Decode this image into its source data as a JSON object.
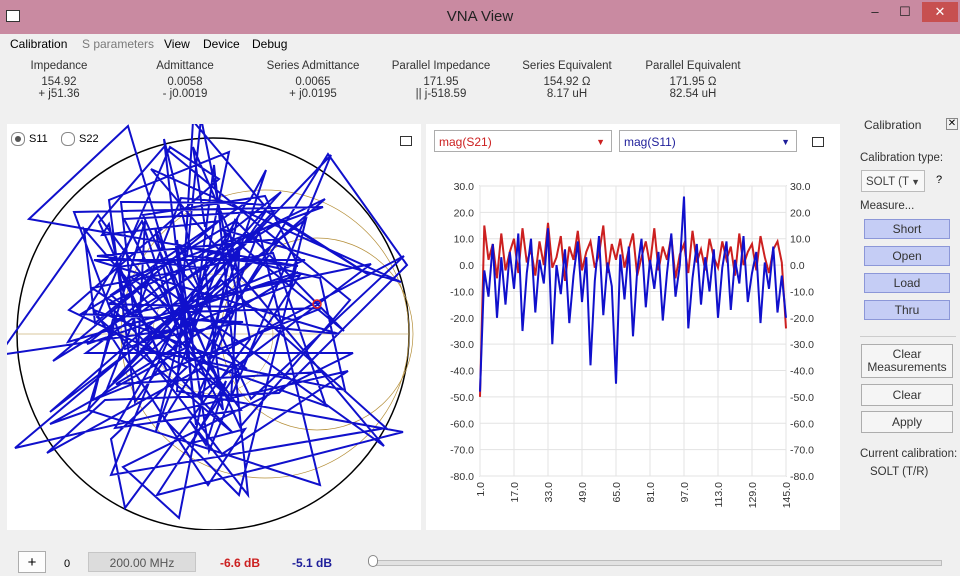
{
  "window": {
    "title": "VNA View",
    "min_glyph": "–",
    "max_glyph": "☐",
    "close_glyph": "✕"
  },
  "menu": [
    "Calibration",
    "S parameters",
    "View",
    "Device",
    "Debug"
  ],
  "stats": [
    {
      "label": "Impedance",
      "v1": "154.92",
      "v2": "+ j51.36"
    },
    {
      "label": "Admittance",
      "v1": "0.0058",
      "v2": "- j0.0019"
    },
    {
      "label": "Series Admittance",
      "v1": "0.0065",
      "v2": "+ j0.0195"
    },
    {
      "label": "Parallel Impedance",
      "v1": "171.95",
      "v2": "|| j-518.59"
    },
    {
      "label": "Series Equivalent",
      "v1": "154.92 Ω",
      "v2": "8.17 uH"
    },
    {
      "label": "Parallel Equivalent",
      "v1": "171.95 Ω",
      "v2": "82.54 uH"
    }
  ],
  "smith": {
    "radio1": "S11",
    "radio2": "S22",
    "trace_color": "#1010cc"
  },
  "plot": {
    "combo1": "mag(S21)",
    "combo2": "mag(S11)",
    "color1": "#cc2020",
    "color2": "#1010cc"
  },
  "chart_data": {
    "type": "line",
    "xlim": [
      1,
      145
    ],
    "ylim": [
      -80,
      30
    ],
    "x_ticks": [
      "1.0",
      "17.0",
      "33.0",
      "49.0",
      "65.0",
      "81.0",
      "97.0",
      "113.0",
      "129.0",
      "145.0"
    ],
    "y_ticks": [
      "30.0",
      "20.0",
      "10.0",
      "0.0",
      "-10.0",
      "-20.0",
      "-30.0",
      "-40.0",
      "-50.0",
      "-60.0",
      "-70.0",
      "-80.0"
    ],
    "grid": true,
    "series": [
      {
        "name": "mag(S21)",
        "color": "#cc2020",
        "x": [
          1,
          3,
          5,
          7,
          9,
          11,
          13,
          15,
          17,
          19,
          21,
          23,
          25,
          27,
          29,
          31,
          33,
          35,
          37,
          39,
          41,
          43,
          45,
          47,
          49,
          51,
          53,
          55,
          57,
          59,
          61,
          63,
          65,
          67,
          69,
          71,
          73,
          75,
          77,
          79,
          81,
          83,
          85,
          87,
          89,
          91,
          93,
          95,
          97,
          99,
          101,
          103,
          105,
          107,
          109,
          111,
          113,
          115,
          117,
          119,
          121,
          123,
          125,
          127,
          129,
          131,
          133,
          135,
          137,
          139,
          141,
          143,
          145
        ],
        "values": [
          -50,
          15,
          2,
          8,
          -5,
          12,
          -2,
          5,
          10,
          -3,
          14,
          1,
          6,
          -4,
          9,
          0,
          16,
          -1,
          3,
          11,
          -6,
          7,
          2,
          13,
          -2,
          5,
          9,
          -1,
          4,
          15,
          -3,
          8,
          2,
          10,
          -1,
          6,
          12,
          -4,
          3,
          9,
          0,
          14,
          -2,
          7,
          2,
          11,
          -5,
          4,
          8,
          -3,
          13,
          1,
          6,
          -2,
          10,
          3,
          -1,
          9,
          2,
          7,
          -4,
          12,
          0,
          5,
          8,
          -2,
          11,
          3,
          -3,
          6,
          9,
          1,
          -24
        ]
      },
      {
        "name": "mag(S11)",
        "color": "#1010cc",
        "x": [
          1,
          3,
          5,
          7,
          9,
          11,
          13,
          15,
          17,
          19,
          21,
          23,
          25,
          27,
          29,
          31,
          33,
          35,
          37,
          39,
          41,
          43,
          45,
          47,
          49,
          51,
          53,
          55,
          57,
          59,
          61,
          63,
          65,
          67,
          69,
          71,
          73,
          75,
          77,
          79,
          81,
          83,
          85,
          87,
          89,
          91,
          93,
          95,
          97,
          99,
          101,
          103,
          105,
          107,
          109,
          111,
          113,
          115,
          117,
          119,
          121,
          123,
          125,
          127,
          129,
          131,
          133,
          135,
          137,
          139,
          141,
          143,
          145
        ],
        "values": [
          -48,
          -2,
          -12,
          8,
          -20,
          3,
          -15,
          5,
          -9,
          12,
          -25,
          -3,
          10,
          -18,
          2,
          -7,
          14,
          -30,
          0,
          -11,
          6,
          -22,
          -4,
          9,
          -14,
          3,
          -38,
          -6,
          11,
          -19,
          1,
          -8,
          -45,
          4,
          -13,
          7,
          -27,
          -2,
          10,
          -16,
          2,
          -9,
          5,
          -21,
          -3,
          12,
          -12,
          0,
          26,
          -24,
          -5,
          8,
          -15,
          3,
          -10,
          6,
          -20,
          -1,
          9,
          -17,
          2,
          -7,
          11,
          -14,
          -3,
          5,
          -22,
          1,
          -9,
          7,
          -18,
          -4,
          -20
        ]
      }
    ]
  },
  "calibration": {
    "header": "Calibration",
    "close": "✕",
    "type_label": "Calibration type:",
    "type_value": "SOLT (T",
    "help": "?",
    "measure_label": "Measure...",
    "short": "Short",
    "open": "Open",
    "load": "Load",
    "thru": "Thru",
    "clear_measurements_1": "Clear",
    "clear_measurements_2": "Measurements",
    "clear": "Clear",
    "apply": "Apply",
    "current_label": "Current calibration:",
    "current_value": "SOLT (T/R)"
  },
  "bottom": {
    "plus": "+",
    "index": "0",
    "freq": "200.00 MHz",
    "db1": "-6.6 dB",
    "db2": "-5.1 dB"
  }
}
